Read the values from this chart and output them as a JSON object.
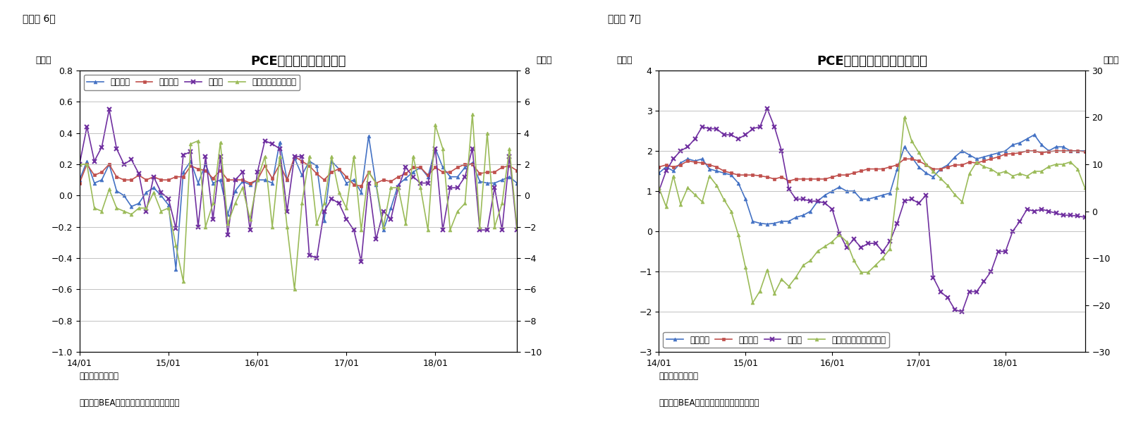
{
  "fig6_title": "PCE価格指数（前月比）",
  "fig7_title": "PCE価格指数（前年同月比）",
  "label6": "（図表 6）",
  "label7": "（図表 7）",
  "ylabel_pct": "（％）",
  "note1": "（注）季節調整済",
  "note2": "（資料）BEAよりニッセイ基礎研究所作成",
  "xtick_labels": [
    "14/01",
    "15/01",
    "16/01",
    "17/01",
    "18/01"
  ],
  "xtick_positions": [
    0,
    12,
    24,
    36,
    48
  ],
  "colors": {
    "sougo": "#4472C4",
    "core": "#C0504D",
    "food": "#7030A0",
    "energy": "#9BBB59"
  },
  "legend6": [
    "総合指数",
    "コア指数",
    "食料品",
    "エネルギー（右軸）"
  ],
  "legend7": [
    "総合指数",
    "コア指数",
    "食料品",
    "エネルギー関連（右軸）"
  ],
  "fig6": {
    "ylim_left": [
      -1.0,
      0.8
    ],
    "ylim_right": [
      -10,
      8
    ],
    "yticks_left": [
      -1.0,
      -0.8,
      -0.6,
      -0.4,
      -0.2,
      0.0,
      0.2,
      0.4,
      0.6,
      0.8
    ],
    "yticks_right": [
      -10,
      -8,
      -6,
      -4,
      -2,
      0,
      2,
      4,
      6,
      8
    ],
    "sougo": [
      0.1,
      0.22,
      0.08,
      0.1,
      0.2,
      0.03,
      0.0,
      -0.07,
      -0.05,
      0.02,
      0.05,
      0.0,
      -0.06,
      -0.47,
      0.15,
      0.22,
      0.08,
      0.2,
      0.08,
      0.1,
      -0.12,
      0.03,
      0.09,
      0.07,
      0.1,
      0.1,
      0.08,
      0.34,
      0.1,
      0.24,
      0.13,
      0.22,
      0.19,
      -0.16,
      0.22,
      0.17,
      0.08,
      0.1,
      0.02,
      0.38,
      0.07,
      -0.22,
      -0.08,
      0.07,
      0.11,
      0.15,
      0.18,
      0.12,
      0.3,
      0.18,
      0.12,
      0.12,
      0.18,
      0.21,
      0.09,
      0.08,
      0.08,
      0.1,
      0.12,
      0.08
    ],
    "core": [
      0.08,
      0.2,
      0.13,
      0.15,
      0.2,
      0.12,
      0.1,
      0.1,
      0.13,
      0.1,
      0.12,
      0.1,
      0.1,
      0.12,
      0.12,
      0.19,
      0.17,
      0.16,
      0.11,
      0.16,
      0.1,
      0.1,
      0.1,
      0.08,
      0.1,
      0.19,
      0.11,
      0.2,
      0.1,
      0.25,
      0.22,
      0.19,
      0.14,
      0.1,
      0.15,
      0.17,
      0.12,
      0.07,
      0.06,
      0.15,
      0.08,
      0.1,
      0.09,
      0.12,
      0.14,
      0.18,
      0.18,
      0.13,
      0.18,
      0.15,
      0.15,
      0.18,
      0.2,
      0.2,
      0.14,
      0.15,
      0.15,
      0.18,
      0.19,
      0.16
    ],
    "food": [
      0.2,
      0.44,
      0.22,
      0.31,
      0.55,
      0.3,
      0.2,
      0.23,
      0.14,
      -0.1,
      0.12,
      0.02,
      -0.02,
      -0.21,
      0.26,
      0.28,
      -0.2,
      0.25,
      -0.15,
      0.25,
      -0.25,
      0.1,
      0.15,
      -0.22,
      0.15,
      0.35,
      0.33,
      0.3,
      -0.1,
      0.25,
      0.25,
      -0.38,
      -0.4,
      -0.1,
      -0.02,
      -0.05,
      -0.15,
      -0.22,
      -0.42,
      0.08,
      -0.28,
      -0.1,
      -0.15,
      0.05,
      0.18,
      0.12,
      0.08,
      0.08,
      0.3,
      -0.22,
      0.05,
      0.05,
      0.12,
      0.3,
      -0.22,
      -0.22,
      0.05,
      -0.22,
      0.25,
      -0.22
    ],
    "energy": [
      2.0,
      2.0,
      -0.8,
      -1.0,
      0.4,
      -0.8,
      -1.0,
      -1.2,
      -0.8,
      -0.8,
      0.2,
      -1.0,
      -0.8,
      -3.2,
      -5.5,
      3.3,
      3.5,
      -2.0,
      -0.5,
      3.4,
      -1.8,
      -0.5,
      0.5,
      -1.5,
      1.0,
      2.5,
      -2.0,
      2.5,
      -2.0,
      -6.0,
      -0.5,
      2.5,
      -1.8,
      -0.5,
      2.5,
      0.2,
      -0.8,
      2.5,
      -2.2,
      1.5,
      0.8,
      -2.0,
      0.5,
      0.5,
      -1.8,
      2.5,
      0.5,
      -2.2,
      4.5,
      3.0,
      -2.2,
      -1.0,
      -0.5,
      5.2,
      -2.0,
      4.0,
      -2.0,
      -0.5,
      3.0,
      -2.0
    ]
  },
  "fig7": {
    "ylim_left": [
      -3,
      4
    ],
    "ylim_right": [
      -30,
      30
    ],
    "yticks_left": [
      -3,
      -2,
      -1,
      0,
      1,
      2,
      3,
      4
    ],
    "yticks_right": [
      -30,
      -20,
      -10,
      0,
      10,
      20,
      30
    ],
    "sougo": [
      1.45,
      1.6,
      1.5,
      1.7,
      1.8,
      1.75,
      1.8,
      1.55,
      1.5,
      1.45,
      1.4,
      1.2,
      0.8,
      0.25,
      0.2,
      0.18,
      0.2,
      0.25,
      0.25,
      0.35,
      0.4,
      0.5,
      0.75,
      0.9,
      1.0,
      1.1,
      1.0,
      1.0,
      0.8,
      0.8,
      0.85,
      0.9,
      0.95,
      1.55,
      2.1,
      1.85,
      1.6,
      1.45,
      1.35,
      1.55,
      1.65,
      1.85,
      2.0,
      1.9,
      1.8,
      1.85,
      1.9,
      1.95,
      2.0,
      2.15,
      2.2,
      2.3,
      2.4,
      2.15,
      2.0,
      2.1,
      2.1,
      2.0,
      2.0,
      2.0
    ],
    "core": [
      1.6,
      1.65,
      1.6,
      1.65,
      1.75,
      1.72,
      1.7,
      1.65,
      1.6,
      1.5,
      1.45,
      1.4,
      1.4,
      1.4,
      1.38,
      1.35,
      1.3,
      1.35,
      1.25,
      1.3,
      1.3,
      1.3,
      1.3,
      1.3,
      1.35,
      1.4,
      1.4,
      1.45,
      1.5,
      1.55,
      1.55,
      1.55,
      1.6,
      1.65,
      1.8,
      1.8,
      1.75,
      1.65,
      1.55,
      1.55,
      1.6,
      1.65,
      1.65,
      1.72,
      1.7,
      1.75,
      1.8,
      1.85,
      1.92,
      1.93,
      1.95,
      2.0,
      2.0,
      1.95,
      1.98,
      2.0,
      2.0,
      2.0,
      2.0,
      1.98
    ],
    "food": [
      1.0,
      1.5,
      1.8,
      2.0,
      2.1,
      2.3,
      2.6,
      2.55,
      2.55,
      2.4,
      2.4,
      2.3,
      2.4,
      2.55,
      2.6,
      3.05,
      2.6,
      2.0,
      1.05,
      0.8,
      0.8,
      0.75,
      0.75,
      0.7,
      0.55,
      -0.05,
      -0.4,
      -0.2,
      -0.4,
      -0.3,
      -0.3,
      -0.5,
      -0.25,
      0.2,
      0.75,
      0.8,
      0.7,
      0.9,
      -1.15,
      -1.5,
      -1.65,
      -1.95,
      -2.0,
      -1.5,
      -1.5,
      -1.25,
      -1.0,
      -0.5,
      -0.5,
      0.0,
      0.25,
      0.55,
      0.5,
      0.55,
      0.5,
      0.45,
      0.4,
      0.4,
      0.38,
      0.35
    ],
    "energy": [
      5.0,
      1.0,
      7.5,
      1.5,
      5.0,
      3.5,
      2.0,
      7.5,
      5.5,
      2.5,
      0.0,
      -5.0,
      -12.0,
      -19.5,
      -17.0,
      -12.5,
      -17.5,
      -14.5,
      -16.0,
      -14.0,
      -11.5,
      -10.5,
      -8.5,
      -7.5,
      -6.5,
      -5.0,
      -6.5,
      -10.5,
      -13.0,
      -13.0,
      -11.5,
      -10.0,
      -8.0,
      5.0,
      20.0,
      15.0,
      12.5,
      10.0,
      8.5,
      7.0,
      5.5,
      3.5,
      2.0,
      8.0,
      10.5,
      9.5,
      9.0,
      8.0,
      8.5,
      7.5,
      8.0,
      7.5,
      8.5,
      8.5,
      9.5,
      10.0,
      10.0,
      10.5,
      9.0,
      5.0
    ]
  }
}
